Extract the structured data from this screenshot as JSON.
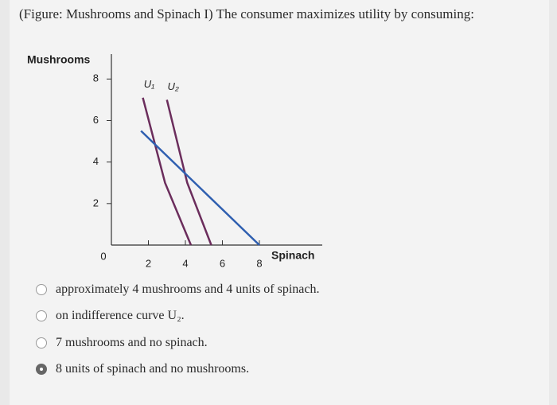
{
  "question": "(Figure: Mushrooms and Spinach I) The consumer maximizes utility by consuming:",
  "chart_data": {
    "type": "line",
    "x_label": "Spinach",
    "y_label": "Mushrooms",
    "xlim": [
      0,
      11.4
    ],
    "ylim": [
      0,
      9.2
    ],
    "xticks": [
      2,
      4,
      6,
      8
    ],
    "yticks": [
      0,
      2,
      4,
      6,
      8
    ],
    "series": [
      {
        "name": "U₁",
        "color": "#6b2d5c",
        "x": [
          1.7,
          2.9,
          4.3
        ],
        "values": [
          7.1,
          3.0,
          0
        ]
      },
      {
        "name": "U₂",
        "color": "#6b2d5c",
        "x": [
          3.0,
          4.1,
          5.4
        ],
        "values": [
          7.0,
          3.0,
          0
        ]
      },
      {
        "color": "#2f5fb0",
        "x": [
          1.6,
          8
        ],
        "values": [
          5.5,
          0
        ]
      }
    ]
  },
  "options": [
    {
      "text": "approximately 4 mushrooms and 4 units of spinach.",
      "selected": false
    },
    {
      "text": "on indifference curve U₂.",
      "selected": false
    },
    {
      "text": "7 mushrooms and no spinach.",
      "selected": false
    },
    {
      "text": "8 units of spinach and no mushrooms.",
      "selected": true
    }
  ]
}
